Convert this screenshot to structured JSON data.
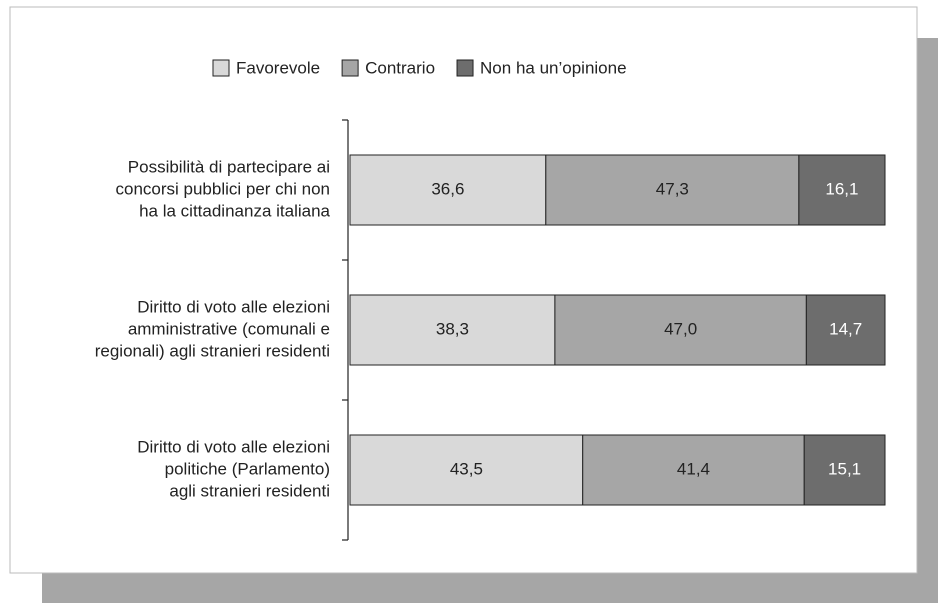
{
  "chart_data": {
    "type": "stacked-barh",
    "categories": [
      [
        "Possibilità di partecipare ai",
        "concorsi pubblici per chi non",
        "ha la cittadinanza italiana"
      ],
      [
        "Diritto di voto alle elezioni",
        "amministrative (comunali e",
        "regionali) agli stranieri residenti"
      ],
      [
        "Diritto di voto alle elezioni",
        "politiche (Parlamento)",
        "agli stranieri residenti"
      ]
    ],
    "series": [
      {
        "name": "Favorevole",
        "color": "#d9d9d9",
        "values": [
          36.6,
          38.3,
          43.5
        ],
        "value_labels": [
          "36,6",
          "38,3",
          "43,5"
        ]
      },
      {
        "name": "Contrario",
        "color": "#a6a6a6",
        "values": [
          47.3,
          47.0,
          41.4
        ],
        "value_labels": [
          "47,3",
          "47,0",
          "41,4"
        ]
      },
      {
        "name": "Non ha un’opinione",
        "color": "#6d6d6d",
        "values": [
          16.1,
          14.7,
          15.1
        ],
        "value_labels": [
          "16,1",
          "14,7",
          "15,1"
        ]
      }
    ],
    "xlim": [
      0,
      100
    ],
    "legend": "top"
  }
}
